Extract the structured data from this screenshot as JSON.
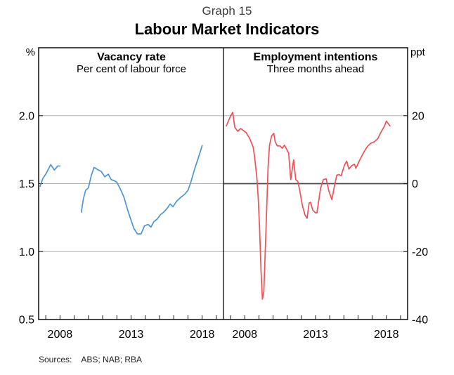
{
  "header": {
    "graph_number": "Graph 15",
    "title": "Labour Market Indicators"
  },
  "footer": {
    "sources_label": "Sources:",
    "sources": "ABS; NAB; RBA"
  },
  "colors": {
    "vacancy_line": "#4e95d4",
    "intentions_line": "#ef5158",
    "gridline": "#b3b3b3",
    "zero_line": "#4a4a4a",
    "border": "#1a1a1a",
    "tick_text": "#000000"
  },
  "chart_data": [
    {
      "type": "line",
      "panel": "left",
      "title": "Vacancy rate",
      "subtitle": "Per cent of labour force",
      "axis_unit": "%",
      "unit_side": "left",
      "ylim": [
        0.5,
        2.5
      ],
      "yticks": [
        0.5,
        1.0,
        1.5,
        2.0
      ],
      "ytick_labels": [
        "0.5",
        "1.0",
        "1.5",
        "2.0"
      ],
      "gridlines": [
        1.0,
        1.5,
        2.0
      ],
      "zero_line": null,
      "xlim": [
        2006.5,
        2019.5
      ],
      "xticks_labeled": [
        2008,
        2013,
        2018
      ],
      "grid": "horizontal-only",
      "legend": "none",
      "series_name": "Job vacancy rate",
      "segments": [
        [
          [
            2006.6,
            1.48
          ],
          [
            2006.8,
            1.54
          ],
          [
            2007.0,
            1.57
          ],
          [
            2007.2,
            1.61
          ],
          [
            2007.35,
            1.64
          ],
          [
            2007.6,
            1.6
          ],
          [
            2007.85,
            1.63
          ],
          [
            2008.0,
            1.63
          ]
        ],
        [
          [
            2009.5,
            1.29
          ],
          [
            2009.65,
            1.39
          ],
          [
            2009.8,
            1.45
          ],
          [
            2010.0,
            1.47
          ],
          [
            2010.2,
            1.56
          ],
          [
            2010.4,
            1.62
          ],
          [
            2010.7,
            1.6
          ],
          [
            2010.9,
            1.59
          ],
          [
            2011.15,
            1.55
          ],
          [
            2011.4,
            1.57
          ],
          [
            2011.6,
            1.53
          ],
          [
            2011.85,
            1.52
          ],
          [
            2012.0,
            1.51
          ],
          [
            2012.25,
            1.46
          ],
          [
            2012.5,
            1.4
          ],
          [
            2012.75,
            1.31
          ],
          [
            2013.0,
            1.23
          ],
          [
            2013.2,
            1.17
          ],
          [
            2013.45,
            1.13
          ],
          [
            2013.7,
            1.13
          ],
          [
            2013.95,
            1.19
          ],
          [
            2014.2,
            1.2
          ],
          [
            2014.4,
            1.18
          ],
          [
            2014.6,
            1.22
          ],
          [
            2014.85,
            1.24
          ],
          [
            2015.05,
            1.27
          ],
          [
            2015.3,
            1.29
          ],
          [
            2015.55,
            1.32
          ],
          [
            2015.75,
            1.35
          ],
          [
            2015.95,
            1.33
          ],
          [
            2016.2,
            1.37
          ],
          [
            2016.5,
            1.4
          ],
          [
            2016.75,
            1.42
          ],
          [
            2017.0,
            1.45
          ],
          [
            2017.2,
            1.51
          ],
          [
            2017.45,
            1.6
          ],
          [
            2017.7,
            1.68
          ],
          [
            2018.0,
            1.78
          ]
        ]
      ]
    },
    {
      "type": "line",
      "panel": "right",
      "title": "Employment intentions",
      "subtitle": "Three months ahead",
      "axis_unit": "ppt",
      "unit_side": "right",
      "ylim": [
        -40,
        40
      ],
      "yticks": [
        -40,
        -20,
        0,
        20
      ],
      "ytick_labels": [
        "-40",
        "-20",
        "0",
        "20"
      ],
      "gridlines": [
        -20,
        20
      ],
      "zero_line": 0,
      "xlim": [
        2006.5,
        2019.5
      ],
      "xticks_labeled": [
        2008,
        2013,
        2018
      ],
      "grid": "horizontal-only",
      "legend": "none",
      "series_name": "NAB employment intentions",
      "segments": [
        [
          [
            2006.7,
            17.0
          ],
          [
            2007.0,
            19.9
          ],
          [
            2007.15,
            21.0
          ],
          [
            2007.3,
            16.6
          ],
          [
            2007.5,
            15.4
          ],
          [
            2007.7,
            16.2
          ],
          [
            2007.85,
            15.8
          ],
          [
            2008.1,
            15.0
          ],
          [
            2008.35,
            13.3
          ],
          [
            2008.6,
            10.7
          ],
          [
            2008.7,
            7.8
          ],
          [
            2008.85,
            2.0
          ],
          [
            2008.95,
            -4.1
          ],
          [
            2009.05,
            -13.3
          ],
          [
            2009.15,
            -25.6
          ],
          [
            2009.25,
            -34.0
          ],
          [
            2009.35,
            -31.8
          ],
          [
            2009.45,
            -19.5
          ],
          [
            2009.55,
            -7.2
          ],
          [
            2009.65,
            5.1
          ],
          [
            2009.75,
            11.3
          ],
          [
            2009.9,
            14.1
          ],
          [
            2010.05,
            14.8
          ],
          [
            2010.15,
            12.3
          ],
          [
            2010.3,
            11.1
          ],
          [
            2010.5,
            11.1
          ],
          [
            2010.65,
            10.4
          ],
          [
            2010.8,
            11.3
          ],
          [
            2010.95,
            10.2
          ],
          [
            2011.1,
            9.0
          ],
          [
            2011.25,
            1.2
          ],
          [
            2011.45,
            7.0
          ],
          [
            2011.6,
            1.2
          ],
          [
            2011.75,
            0.6
          ],
          [
            2011.9,
            -2.3
          ],
          [
            2012.05,
            -6.1
          ],
          [
            2012.25,
            -9.2
          ],
          [
            2012.4,
            -10.2
          ],
          [
            2012.55,
            -5.7
          ],
          [
            2012.65,
            -5.5
          ],
          [
            2012.8,
            -7.8
          ],
          [
            2013.0,
            -8.6
          ],
          [
            2013.1,
            -8.6
          ],
          [
            2013.35,
            -1.4
          ],
          [
            2013.55,
            1.2
          ],
          [
            2013.75,
            1.4
          ],
          [
            2013.95,
            -2.3
          ],
          [
            2014.15,
            -4.7
          ],
          [
            2014.35,
            -0.4
          ],
          [
            2014.5,
            2.5
          ],
          [
            2014.65,
            2.7
          ],
          [
            2014.8,
            2.3
          ],
          [
            2015.05,
            5.5
          ],
          [
            2015.2,
            6.6
          ],
          [
            2015.35,
            4.3
          ],
          [
            2015.55,
            5.3
          ],
          [
            2015.75,
            5.7
          ],
          [
            2015.85,
            4.5
          ],
          [
            2016.1,
            6.8
          ],
          [
            2016.4,
            9.2
          ],
          [
            2016.65,
            10.9
          ],
          [
            2016.9,
            11.9
          ],
          [
            2017.15,
            12.3
          ],
          [
            2017.4,
            13.3
          ],
          [
            2017.6,
            15.0
          ],
          [
            2017.85,
            16.8
          ],
          [
            2018.0,
            18.4
          ],
          [
            2018.25,
            17.0
          ]
        ]
      ]
    }
  ]
}
